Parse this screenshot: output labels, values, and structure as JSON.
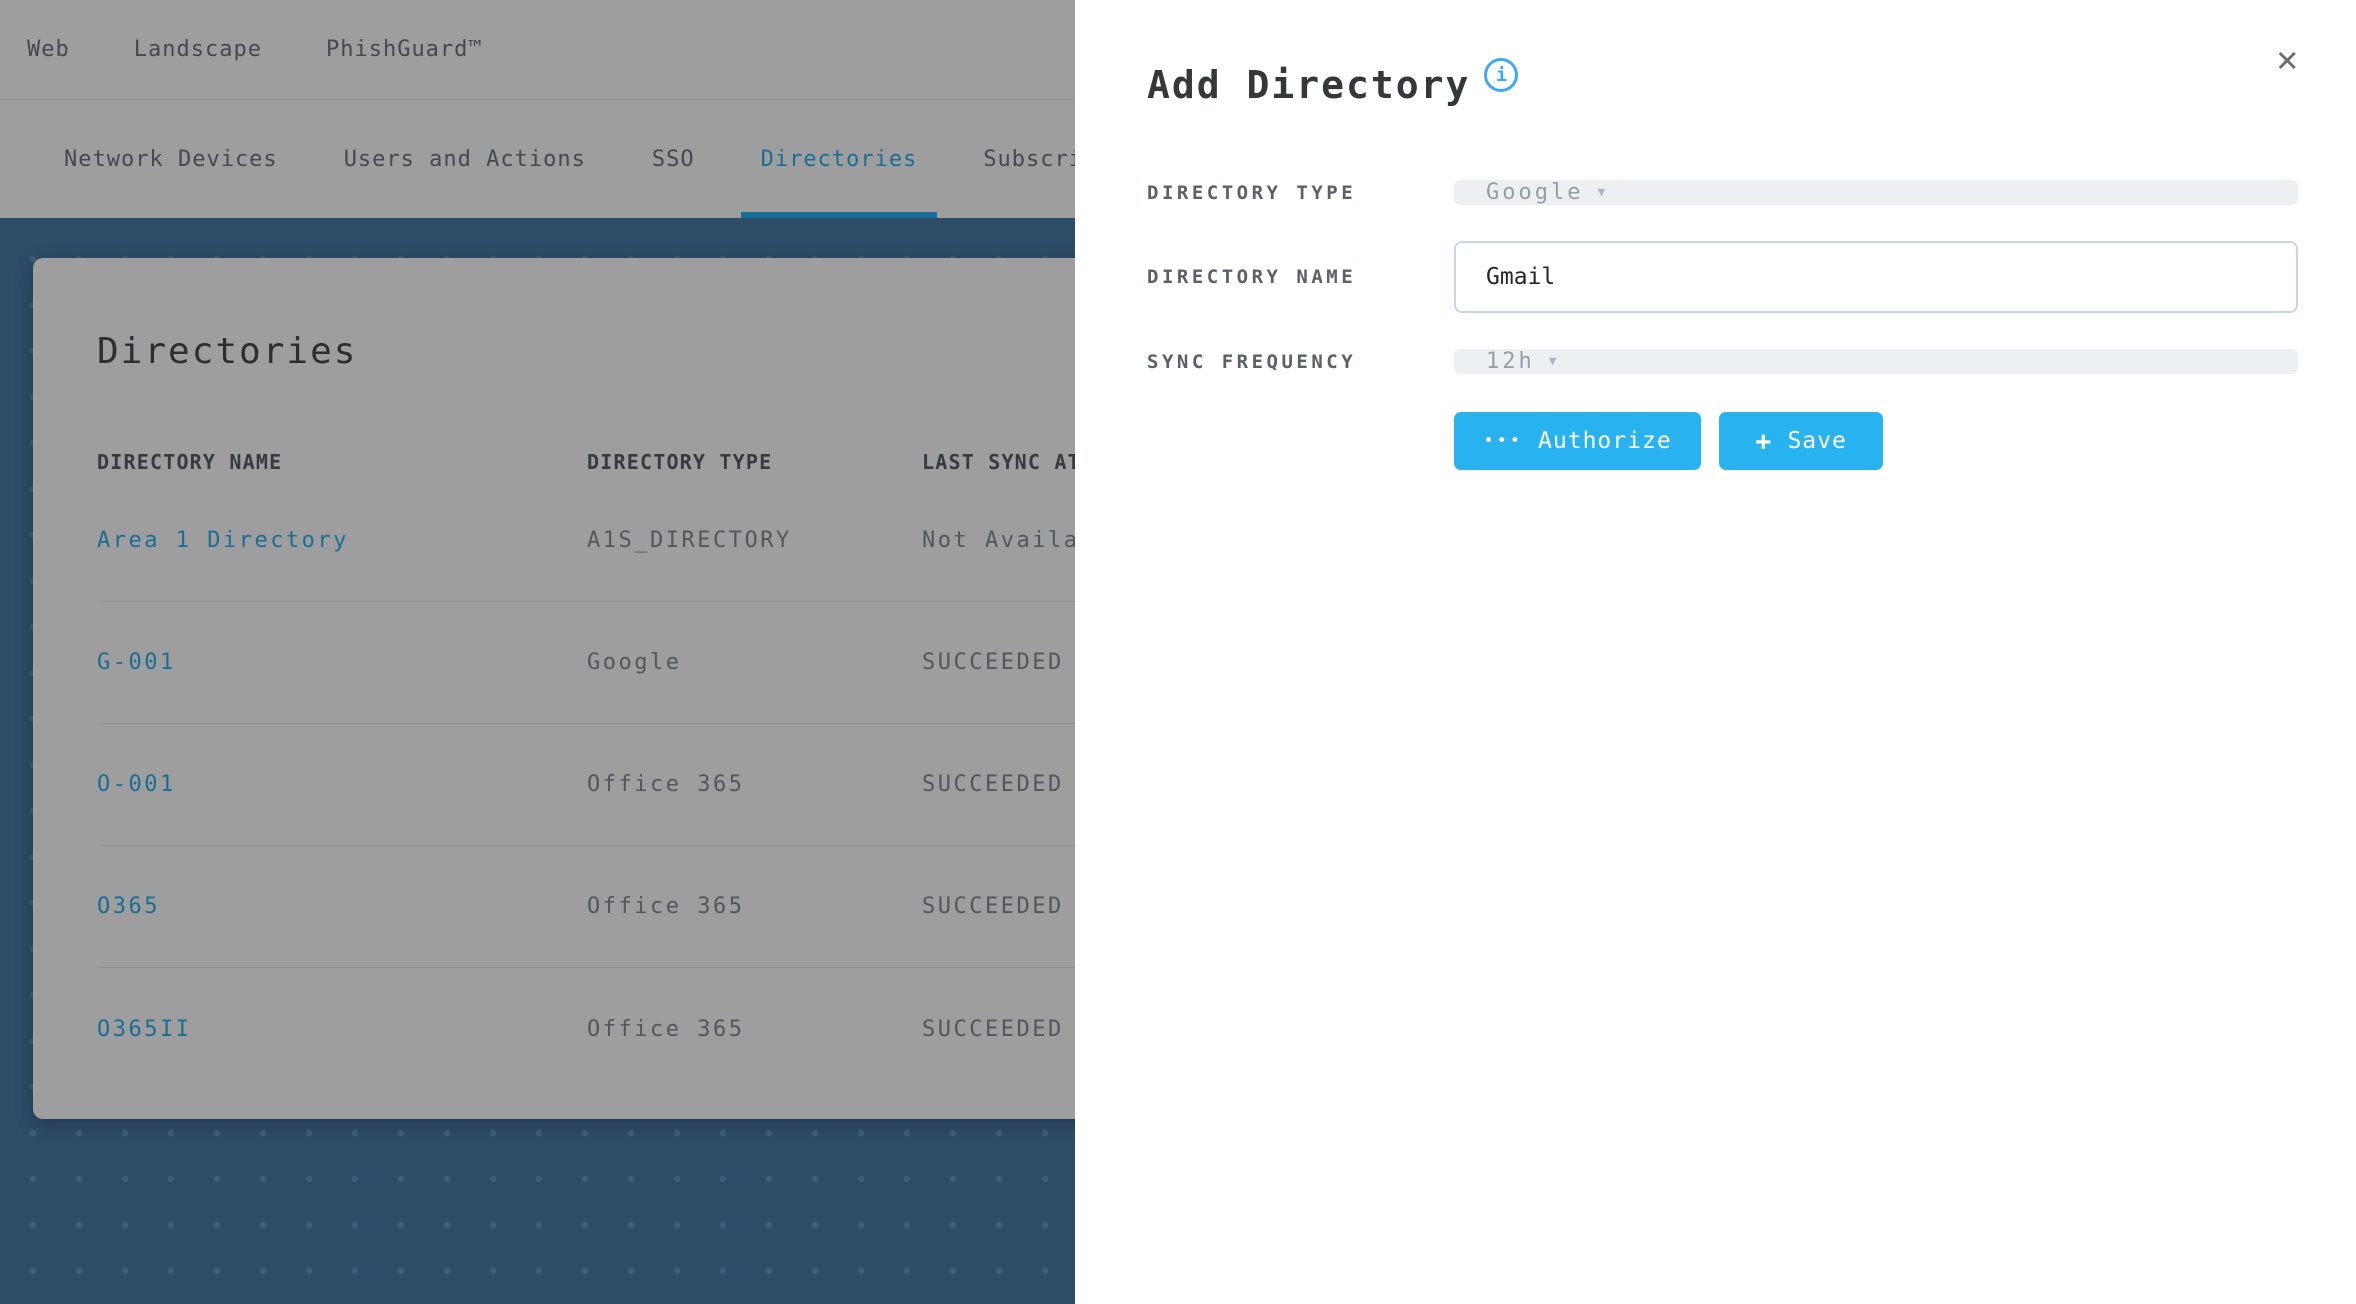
{
  "top_nav": {
    "items": [
      "Web",
      "Landscape",
      "PhishGuard™"
    ]
  },
  "tabs": {
    "items": [
      "Network Devices",
      "Users and Actions",
      "SSO",
      "Directories",
      "Subscriptions"
    ],
    "active": "Directories"
  },
  "panel": {
    "title": "Directories",
    "table": {
      "columns": [
        "DIRECTORY NAME",
        "DIRECTORY TYPE",
        "LAST SYNC ATTEMPT"
      ],
      "rows": [
        [
          "Area 1 Directory",
          "A1S_DIRECTORY",
          "Not Available"
        ],
        [
          "G-001",
          "Google",
          "SUCCEEDED"
        ],
        [
          "O-001",
          "Office 365",
          "SUCCEEDED"
        ],
        [
          "O365",
          "Office 365",
          "SUCCEEDED"
        ],
        [
          "O365II",
          "Office 365",
          "SUCCEEDED"
        ]
      ]
    }
  },
  "modal": {
    "title": "Add Directory",
    "info_glyph": "i",
    "close_glyph": "✕",
    "fields": {
      "directory_type": {
        "label": "DIRECTORY TYPE",
        "value": "Google",
        "caret": "▼"
      },
      "directory_name": {
        "label": "DIRECTORY NAME",
        "value": "Gmail"
      },
      "sync_frequency": {
        "label": "SYNC FREQUENCY",
        "value": "12h",
        "caret": "▼"
      }
    },
    "buttons": {
      "authorize_icon": "•••",
      "authorize": "Authorize",
      "save_icon": "+",
      "save": "Save"
    }
  },
  "colors": {
    "accent": "#29b2f0",
    "backdrop_blue": "#4a7ba8",
    "info_blue": "#3fa9f5"
  }
}
